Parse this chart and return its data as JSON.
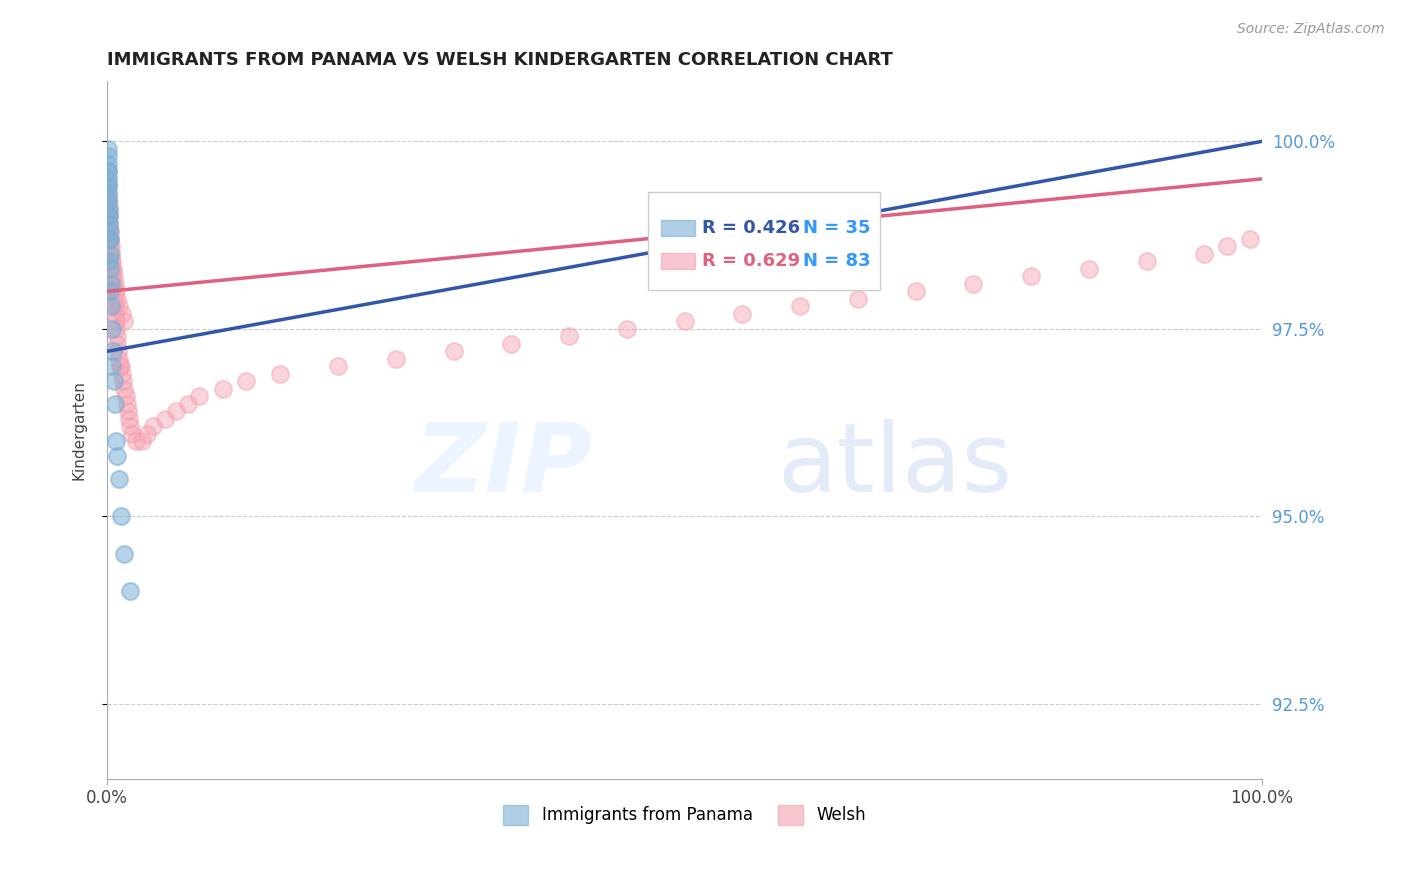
{
  "title": "IMMIGRANTS FROM PANAMA VS WELSH KINDERGARTEN CORRELATION CHART",
  "source_text": "Source: ZipAtlas.com",
  "ylabel": "Kindergarten",
  "x_min": 0.0,
  "x_max": 100.0,
  "y_min": 91.5,
  "y_max": 100.8,
  "y_ticks": [
    92.5,
    95.0,
    97.5,
    100.0
  ],
  "x_tick_labels": [
    "0.0%",
    "100.0%"
  ],
  "y_tick_labels": [
    "92.5%",
    "95.0%",
    "97.5%",
    "100.0%"
  ],
  "blue_label": "Immigrants from Panama",
  "pink_label": "Welsh",
  "blue_R": 0.426,
  "blue_N": 35,
  "pink_R": 0.629,
  "pink_N": 83,
  "blue_color": "#7BAFD4",
  "pink_color": "#F4A0B0",
  "blue_line_color": "#3355AA",
  "pink_line_color": "#E06080",
  "blue_x": [
    0.05,
    0.05,
    0.08,
    0.08,
    0.1,
    0.1,
    0.12,
    0.15,
    0.15,
    0.18,
    0.2,
    0.22,
    0.25,
    0.28,
    0.3,
    0.35,
    0.4,
    0.5,
    0.6,
    0.7,
    0.8,
    1.0,
    1.2,
    1.5,
    2.0,
    0.05,
    0.06,
    0.07,
    0.09,
    0.11,
    0.14,
    0.17,
    0.22,
    0.45,
    0.9
  ],
  "blue_y": [
    99.8,
    99.7,
    99.6,
    99.5,
    99.4,
    99.3,
    99.2,
    99.1,
    99.0,
    98.9,
    98.8,
    98.7,
    98.5,
    98.3,
    98.1,
    97.8,
    97.5,
    97.2,
    96.8,
    96.5,
    96.0,
    95.5,
    95.0,
    94.5,
    94.0,
    99.9,
    99.6,
    99.4,
    99.2,
    99.0,
    98.7,
    98.4,
    98.0,
    97.0,
    95.8
  ],
  "pink_x": [
    0.05,
    0.08,
    0.1,
    0.12,
    0.15,
    0.18,
    0.2,
    0.22,
    0.25,
    0.28,
    0.3,
    0.35,
    0.4,
    0.45,
    0.5,
    0.55,
    0.6,
    0.65,
    0.7,
    0.75,
    0.8,
    0.85,
    0.9,
    0.95,
    1.0,
    1.1,
    1.2,
    1.3,
    1.4,
    1.5,
    1.6,
    1.7,
    1.8,
    1.9,
    2.0,
    2.2,
    2.5,
    3.0,
    3.5,
    4.0,
    5.0,
    6.0,
    7.0,
    8.0,
    10.0,
    12.0,
    15.0,
    20.0,
    25.0,
    30.0,
    35.0,
    40.0,
    45.0,
    50.0,
    55.0,
    60.0,
    65.0,
    70.0,
    75.0,
    80.0,
    85.0,
    90.0,
    95.0,
    97.0,
    99.0,
    0.07,
    0.09,
    0.11,
    0.14,
    0.17,
    0.22,
    0.27,
    0.32,
    0.38,
    0.43,
    0.48,
    0.58,
    0.68,
    0.78,
    0.88,
    1.05,
    1.25,
    1.45
  ],
  "pink_y": [
    99.5,
    99.4,
    99.3,
    99.2,
    99.1,
    99.0,
    98.9,
    98.8,
    98.7,
    98.6,
    98.5,
    98.4,
    98.3,
    98.2,
    98.1,
    98.0,
    97.9,
    97.8,
    97.7,
    97.6,
    97.5,
    97.4,
    97.3,
    97.2,
    97.1,
    97.0,
    97.0,
    96.9,
    96.8,
    96.7,
    96.6,
    96.5,
    96.4,
    96.3,
    96.2,
    96.1,
    96.0,
    96.0,
    96.1,
    96.2,
    96.3,
    96.4,
    96.5,
    96.6,
    96.7,
    96.8,
    96.9,
    97.0,
    97.1,
    97.2,
    97.3,
    97.4,
    97.5,
    97.6,
    97.7,
    97.8,
    97.9,
    98.0,
    98.1,
    98.2,
    98.3,
    98.4,
    98.5,
    98.6,
    98.7,
    99.3,
    99.2,
    99.1,
    99.0,
    98.9,
    98.8,
    98.7,
    98.6,
    98.5,
    98.4,
    98.3,
    98.2,
    98.1,
    98.0,
    97.9,
    97.8,
    97.7,
    97.6
  ]
}
